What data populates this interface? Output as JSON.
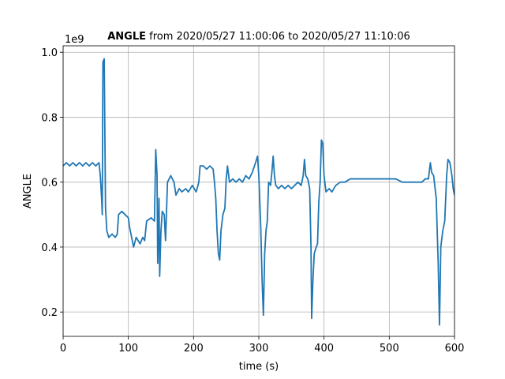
{
  "chart_data": {
    "type": "line",
    "title_bold": "ANGLE",
    "title_rest": " from 2020/05/27 11:00:06 to 2020/05/27 11:10:06",
    "offset_text": "1e9",
    "xlabel": "time (s)",
    "ylabel": "ANGLE",
    "xlim": [
      0,
      600
    ],
    "ylim": [
      0.125,
      1.02
    ],
    "xticks": [
      0,
      100,
      200,
      300,
      400,
      500,
      600
    ],
    "yticks": [
      0.2,
      0.4,
      0.6,
      0.8,
      {
        "value": 1,
        "label": "1.0"
      }
    ],
    "grid": true,
    "series": [
      {
        "name": "ANGLE",
        "color": "#1f77b4",
        "x": [
          0,
          5,
          10,
          15,
          20,
          25,
          30,
          35,
          40,
          45,
          50,
          55,
          57,
          59,
          60,
          61,
          63,
          64,
          65,
          67,
          70,
          75,
          80,
          83,
          85,
          90,
          95,
          100,
          102,
          105,
          108,
          112,
          118,
          122,
          125,
          128,
          135,
          140,
          142,
          144,
          145,
          147,
          148,
          150,
          152,
          155,
          157,
          160,
          165,
          170,
          173,
          178,
          182,
          188,
          192,
          198,
          204,
          208,
          210,
          215,
          220,
          225,
          230,
          232,
          234,
          236,
          238,
          240,
          242,
          245,
          248,
          250,
          252,
          255,
          260,
          265,
          270,
          275,
          280,
          285,
          290,
          295,
          298,
          300,
          303,
          305,
          307,
          309,
          311,
          313,
          315,
          318,
          320,
          322,
          324,
          326,
          330,
          335,
          340,
          345,
          350,
          355,
          360,
          365,
          368,
          370,
          372,
          375,
          378,
          380,
          381,
          383,
          385,
          388,
          390,
          392,
          394,
          396,
          398,
          400,
          403,
          408,
          412,
          418,
          425,
          432,
          440,
          450,
          460,
          470,
          480,
          490,
          500,
          510,
          520,
          530,
          540,
          550,
          555,
          560,
          563,
          565,
          568,
          572,
          575,
          577,
          579,
          582,
          585,
          588,
          590,
          593,
          596,
          598,
          600
        ],
        "values": [
          0.65,
          0.66,
          0.65,
          0.66,
          0.65,
          0.66,
          0.65,
          0.66,
          0.65,
          0.66,
          0.65,
          0.66,
          0.62,
          0.55,
          0.5,
          0.97,
          0.98,
          0.75,
          0.52,
          0.45,
          0.43,
          0.44,
          0.43,
          0.44,
          0.5,
          0.51,
          0.5,
          0.49,
          0.46,
          0.43,
          0.4,
          0.43,
          0.41,
          0.43,
          0.42,
          0.48,
          0.49,
          0.48,
          0.7,
          0.62,
          0.35,
          0.55,
          0.31,
          0.45,
          0.51,
          0.5,
          0.42,
          0.6,
          0.62,
          0.6,
          0.56,
          0.58,
          0.57,
          0.58,
          0.57,
          0.59,
          0.57,
          0.6,
          0.65,
          0.65,
          0.64,
          0.65,
          0.64,
          0.6,
          0.55,
          0.45,
          0.38,
          0.36,
          0.45,
          0.5,
          0.52,
          0.61,
          0.65,
          0.6,
          0.61,
          0.6,
          0.61,
          0.6,
          0.62,
          0.61,
          0.63,
          0.66,
          0.68,
          0.62,
          0.46,
          0.3,
          0.19,
          0.38,
          0.45,
          0.48,
          0.6,
          0.59,
          0.63,
          0.68,
          0.62,
          0.59,
          0.58,
          0.59,
          0.58,
          0.59,
          0.58,
          0.59,
          0.6,
          0.59,
          0.62,
          0.67,
          0.62,
          0.61,
          0.58,
          0.4,
          0.18,
          0.3,
          0.38,
          0.4,
          0.41,
          0.54,
          0.6,
          0.73,
          0.72,
          0.62,
          0.57,
          0.58,
          0.57,
          0.59,
          0.6,
          0.6,
          0.61,
          0.61,
          0.61,
          0.61,
          0.61,
          0.61,
          0.61,
          0.61,
          0.6,
          0.6,
          0.6,
          0.6,
          0.61,
          0.61,
          0.66,
          0.63,
          0.62,
          0.55,
          0.35,
          0.16,
          0.4,
          0.45,
          0.48,
          0.62,
          0.67,
          0.66,
          0.62,
          0.58,
          0.56
        ]
      }
    ]
  }
}
